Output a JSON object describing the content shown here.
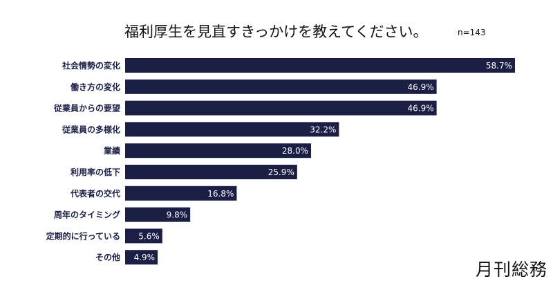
{
  "chart_data": {
    "type": "bar",
    "orientation": "horizontal",
    "title": "福利厚生を見直すきっかけを教えてください。",
    "note": "n=143",
    "categories": [
      "社会情勢の変化",
      "働き方の変化",
      "従業員からの要望",
      "従業員の多様化",
      "業績",
      "利用率の低下",
      "代表者の交代",
      "周年のタイミング",
      "定期的に行っている",
      "その他"
    ],
    "values": [
      58.7,
      46.9,
      46.9,
      32.2,
      28.0,
      25.9,
      16.8,
      9.8,
      5.6,
      4.9
    ],
    "value_labels": [
      "58.7%",
      "46.9%",
      "46.9%",
      "32.2%",
      "28.0%",
      "25.9%",
      "16.8%",
      "9.8%",
      "5.6%",
      "4.9%"
    ],
    "xlim": [
      0,
      58.7
    ],
    "grid": false,
    "bar_color": "#1c1f45",
    "label_color": "#1c1f45"
  },
  "logo": "月刊総務"
}
